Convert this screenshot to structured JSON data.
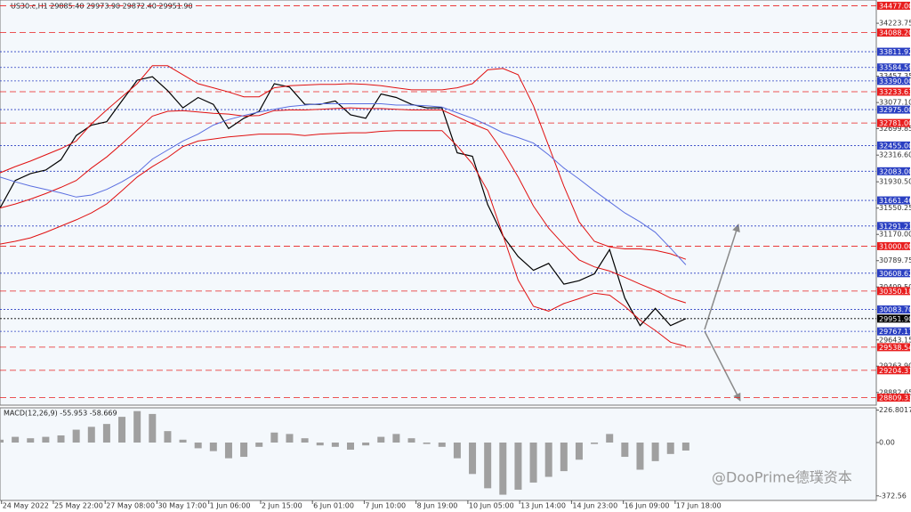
{
  "chart_data": [
    {
      "type": "line",
      "header": "US30.c,H1  29885.40 29973.90 29872.40 29951.90",
      "x": [
        0,
        10,
        20,
        30,
        40,
        50,
        60,
        70,
        80,
        90,
        100,
        110,
        120,
        130,
        140,
        150,
        160,
        170,
        180,
        190,
        200,
        210,
        220,
        230,
        240,
        250,
        260,
        270,
        280,
        290,
        300,
        310,
        320,
        330,
        340,
        350,
        360,
        370,
        380,
        390,
        400,
        410,
        420,
        430,
        440,
        450
      ],
      "xlim": [
        0,
        575
      ],
      "ylim": [
        28700,
        34560
      ],
      "yticks": [
        34223.75,
        33457.35,
        {
          "value": 33077.1,
          "label": "33077.10"
        },
        32699.85,
        {
          "value": 32316.6,
          "label": "32316.60"
        },
        {
          "value": 31930.5,
          "label": "31930.50"
        },
        31550.25,
        {
          "value": 31170,
          "label": "31170.00"
        },
        30789.75,
        {
          "value": 30409.5,
          "label": "30409.50"
        },
        29643.15,
        {
          "value": 29263.9,
          "label": "29263.90"
        },
        28882.65
      ],
      "levels": [
        {
          "value": 34477,
          "label": "34477.00",
          "color": "#e81e1e"
        },
        {
          "value": 34088.2,
          "label": "34088.20",
          "color": "#e81e1e"
        },
        {
          "value": 33811.92,
          "label": "33811.92",
          "color": "#2a3fc2"
        },
        {
          "value": 33584.59,
          "label": "33584.59",
          "color": "#2a3fc2"
        },
        {
          "value": 33390,
          "label": "33390.00",
          "color": "#2a3fc2"
        },
        {
          "value": 33233.63,
          "label": "33233.63",
          "color": "#e81e1e"
        },
        {
          "value": 32975,
          "label": "32975.00",
          "color": "#2a3fc2"
        },
        {
          "value": 32781,
          "label": "32781.00",
          "color": "#e81e1e"
        },
        {
          "value": 32455,
          "label": "32455.00",
          "color": "#2a3fc2"
        },
        {
          "value": 32083,
          "label": "32083.00",
          "color": "#2a3fc2"
        },
        {
          "value": 31661.46,
          "label": "31661.46",
          "color": "#2a3fc2"
        },
        {
          "value": 31291.23,
          "label": "31291.23",
          "color": "#2a3fc2"
        },
        {
          "value": 31000,
          "label": "31000.00",
          "color": "#e81e1e"
        },
        {
          "value": 30608.62,
          "label": "30608.62",
          "color": "#2a3fc2"
        },
        {
          "value": 30350.18,
          "label": "30350.18",
          "color": "#e81e1e"
        },
        {
          "value": 30083.7,
          "label": "30083.70",
          "color": "#2a3fc2"
        },
        {
          "value": 29951.9,
          "label": "29951.90",
          "color": "#000000"
        },
        {
          "value": 29767.17,
          "label": "29767.17",
          "color": "#2a3fc2"
        },
        {
          "value": 29538.54,
          "label": "29538.54",
          "color": "#e81e1e"
        },
        {
          "value": 29204.37,
          "label": "29204.37",
          "color": "#e81e1e"
        },
        {
          "value": 28809.33,
          "label": "28809.33",
          "color": "#e81e1e"
        }
      ],
      "series": [
        {
          "color": "#000000",
          "values": [
            31550,
            31950,
            32050,
            32100,
            32250,
            32600,
            32750,
            32800,
            33100,
            33400,
            33450,
            33250,
            33000,
            33150,
            33050,
            32700,
            32850,
            32950,
            33350,
            33300,
            33050,
            33050,
            33100,
            32900,
            32850,
            33200,
            33150,
            33050,
            33000,
            33000,
            32350,
            32300,
            31600,
            31150,
            30850,
            30650,
            30750,
            30450,
            30500,
            30600,
            30950,
            30250,
            29850,
            30100,
            29850,
            29951.9
          ]
        },
        {
          "color": "#e01010",
          "values": [
            32060,
            32150,
            32230,
            32320,
            32410,
            32520,
            32770,
            32970,
            33160,
            33350,
            33610,
            33610,
            33480,
            33350,
            33290,
            33230,
            33160,
            33160,
            33290,
            33320,
            33330,
            33340,
            33340,
            33350,
            33340,
            33320,
            33290,
            33260,
            33260,
            33260,
            33290,
            33350,
            33550,
            33570,
            33480,
            33030,
            32450,
            31870,
            31350,
            31070,
            30990,
            30960,
            30960,
            30940,
            30890,
            30810
          ]
        },
        {
          "color": "#e01010",
          "values": [
            31550,
            31610,
            31680,
            31760,
            31850,
            31950,
            32130,
            32290,
            32480,
            32680,
            32880,
            32950,
            32960,
            32940,
            32920,
            32910,
            32880,
            32890,
            32960,
            32970,
            32970,
            32980,
            32990,
            33000,
            32990,
            32990,
            32980,
            32970,
            32970,
            32970,
            32870,
            32770,
            32680,
            32370,
            32000,
            31580,
            31260,
            31020,
            30800,
            30700,
            30640,
            30550,
            30450,
            30360,
            30250,
            30180
          ]
        },
        {
          "color": "#e01010",
          "values": [
            31030,
            31070,
            31120,
            31200,
            31290,
            31380,
            31480,
            31610,
            31800,
            32000,
            32150,
            32280,
            32440,
            32520,
            32550,
            32580,
            32600,
            32620,
            32620,
            32620,
            32600,
            32620,
            32630,
            32640,
            32640,
            32660,
            32670,
            32670,
            32670,
            32670,
            32450,
            32190,
            31800,
            31160,
            30510,
            30130,
            30060,
            30170,
            30240,
            30320,
            30290,
            30130,
            29930,
            29780,
            29610,
            29550
          ]
        },
        {
          "color": "#5a6ee0",
          "values": [
            32000,
            31930,
            31870,
            31820,
            31770,
            31710,
            31740,
            31820,
            31930,
            32060,
            32260,
            32390,
            32520,
            32620,
            32750,
            32830,
            32890,
            32940,
            32980,
            33020,
            33040,
            33060,
            33060,
            33060,
            33060,
            33060,
            33040,
            33040,
            33030,
            33010,
            32930,
            32850,
            32750,
            32640,
            32570,
            32490,
            32320,
            32130,
            31970,
            31800,
            31640,
            31480,
            31350,
            31200,
            30970,
            30730
          ]
        }
      ]
    },
    {
      "type": "bar",
      "header": "MACD(12,26,9) -55.953 -58.669",
      "x": [
        0,
        10,
        20,
        30,
        40,
        50,
        60,
        70,
        80,
        90,
        100,
        110,
        120,
        130,
        140,
        150,
        160,
        170,
        180,
        190,
        200,
        210,
        220,
        230,
        240,
        250,
        260,
        270,
        280,
        290,
        300,
        310,
        320,
        330,
        340,
        350,
        360,
        370,
        380,
        390,
        400,
        410,
        420,
        430,
        440,
        450
      ],
      "xlim": [
        0,
        575
      ],
      "xticks": [
        {
          "value": 1,
          "label": "24 May 2022"
        },
        {
          "value": 35,
          "label": "25 May 22:00"
        },
        {
          "value": 69,
          "label": "27 May 08:00"
        },
        {
          "value": 103,
          "label": "30 May 17:00"
        },
        {
          "value": 137,
          "label": "1 Jun 06:00"
        },
        {
          "value": 171,
          "label": "2 Jun 15:00"
        },
        {
          "value": 205,
          "label": "6 Jun 01:00"
        },
        {
          "value": 239,
          "label": "7 Jun 10:00"
        },
        {
          "value": 273,
          "label": "8 Jun 19:00"
        },
        {
          "value": 307,
          "label": "10 Jun 05:00"
        },
        {
          "value": 341,
          "label": "13 Jun 14:00"
        },
        {
          "value": 375,
          "label": "14 Jun 23:00"
        },
        {
          "value": 409,
          "label": "16 Jun 09:00"
        },
        {
          "value": 443,
          "label": "17 Jun 18:00"
        }
      ],
      "ylim": [
        -405,
        243
      ],
      "yticks": [
        226.8017,
        {
          "value": 0,
          "label": "0.00"
        },
        -372.56
      ],
      "color": "#a0a0a0",
      "values": [
        20,
        40,
        30,
        40,
        50,
        90,
        110,
        130,
        180,
        220,
        200,
        80,
        20,
        -40,
        -60,
        -110,
        -100,
        -30,
        70,
        60,
        30,
        -20,
        -30,
        -50,
        -20,
        40,
        60,
        30,
        -10,
        -30,
        -110,
        -220,
        -320,
        -365,
        -330,
        -280,
        -240,
        -200,
        -120,
        -10,
        60,
        -100,
        -190,
        -130,
        -80,
        -55.953
      ]
    }
  ],
  "watermark": "@DooPrime德璞资本"
}
